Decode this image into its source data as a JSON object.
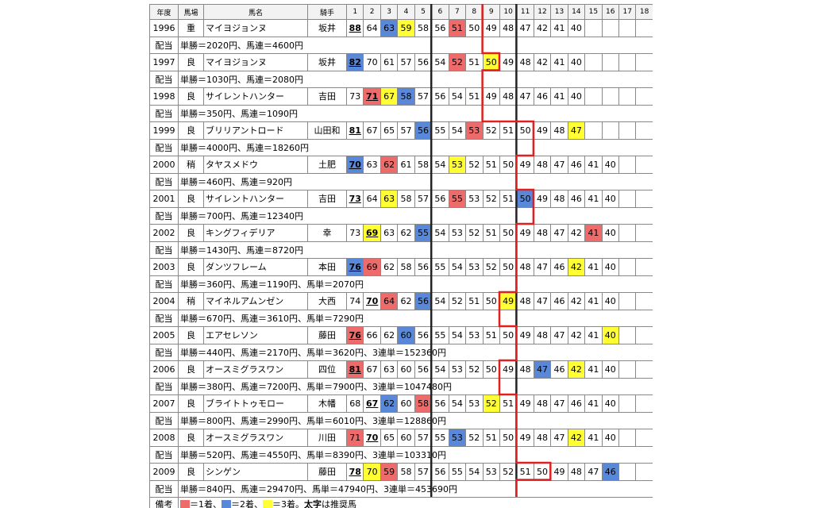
{
  "header": {
    "columns": [
      "年度",
      "馬場",
      "馬名",
      "騎手",
      "1",
      "2",
      "3",
      "4",
      "5",
      "6",
      "7",
      "8",
      "9",
      "10",
      "11",
      "12",
      "13",
      "14",
      "15",
      "16",
      "17",
      "18"
    ]
  },
  "rows": [
    {
      "year": "1996",
      "track": "重",
      "horse": "マイヨジョンヌ",
      "jockey": "坂井",
      "cells": [
        {
          "value": 88,
          "recommended": true
        },
        {
          "value": 64
        },
        {
          "value": 63,
          "color": "blue"
        },
        {
          "value": 59,
          "color": "yellow"
        },
        {
          "value": 58
        },
        {
          "value": 56
        },
        {
          "value": 51,
          "color": "red"
        },
        {
          "value": 50
        },
        {
          "value": 49
        },
        {
          "value": 48
        },
        {
          "value": 47
        },
        {
          "value": 42
        },
        {
          "value": 41
        },
        {
          "value": 40
        }
      ],
      "payout_label": "配当",
      "payout": "単勝＝2020円、馬連＝4600円"
    },
    {
      "year": "1997",
      "track": "良",
      "horse": "マイヨジョンヌ",
      "jockey": "坂井",
      "cells": [
        {
          "value": 82,
          "recommended": true,
          "color": "blue"
        },
        {
          "value": 70
        },
        {
          "value": 61
        },
        {
          "value": 57
        },
        {
          "value": 56
        },
        {
          "value": 54
        },
        {
          "value": 52,
          "color": "red"
        },
        {
          "value": 51
        },
        {
          "value": 50,
          "color": "yellow"
        },
        {
          "value": 49
        },
        {
          "value": 48
        },
        {
          "value": 42
        },
        {
          "value": 41
        },
        {
          "value": 40
        }
      ],
      "payout_label": "配当",
      "payout": "単勝＝1030円、馬連＝2080円"
    },
    {
      "year": "1998",
      "track": "良",
      "horse": "サイレントハンター",
      "jockey": "吉田",
      "cells": [
        {
          "value": 73
        },
        {
          "value": 71,
          "recommended": true,
          "color": "red"
        },
        {
          "value": 67,
          "color": "yellow"
        },
        {
          "value": 58,
          "color": "blue"
        },
        {
          "value": 57
        },
        {
          "value": 56
        },
        {
          "value": 54
        },
        {
          "value": 51
        },
        {
          "value": 49
        },
        {
          "value": 48
        },
        {
          "value": 47
        },
        {
          "value": 46
        },
        {
          "value": 41
        },
        {
          "value": 40
        }
      ],
      "payout_label": "配当",
      "payout": "単勝＝350円、馬連＝1090円"
    },
    {
      "year": "1999",
      "track": "良",
      "horse": "ブリリアントロード",
      "jockey": "山田和",
      "cells": [
        {
          "value": 81,
          "recommended": true
        },
        {
          "value": 67
        },
        {
          "value": 65
        },
        {
          "value": 57
        },
        {
          "value": 56,
          "color": "blue"
        },
        {
          "value": 55
        },
        {
          "value": 54
        },
        {
          "value": 53,
          "color": "red"
        },
        {
          "value": 52
        },
        {
          "value": 51
        },
        {
          "value": 50
        },
        {
          "value": 49
        },
        {
          "value": 48
        },
        {
          "value": 47,
          "color": "yellow"
        }
      ],
      "payout_label": "配当",
      "payout": "単勝＝4000円、馬連＝18260円"
    },
    {
      "year": "2000",
      "track": "稍",
      "horse": "タヤスメドウ",
      "jockey": "土肥",
      "cells": [
        {
          "value": 70,
          "recommended": true,
          "color": "blue"
        },
        {
          "value": 63
        },
        {
          "value": 62,
          "color": "red"
        },
        {
          "value": 61
        },
        {
          "value": 58
        },
        {
          "value": 54
        },
        {
          "value": 53,
          "color": "yellow"
        },
        {
          "value": 52
        },
        {
          "value": 51
        },
        {
          "value": 50
        },
        {
          "value": 49
        },
        {
          "value": 48
        },
        {
          "value": 47
        },
        {
          "value": 46
        },
        {
          "value": 41
        },
        {
          "value": 40
        }
      ],
      "payout_label": "配当",
      "payout": "単勝＝460円、馬連＝920円"
    },
    {
      "year": "2001",
      "track": "良",
      "horse": "サイレントハンター",
      "jockey": "吉田",
      "cells": [
        {
          "value": 73,
          "recommended": true
        },
        {
          "value": 64
        },
        {
          "value": 63,
          "color": "yellow"
        },
        {
          "value": 58
        },
        {
          "value": 57
        },
        {
          "value": 56
        },
        {
          "value": 55,
          "color": "red"
        },
        {
          "value": 53
        },
        {
          "value": 52
        },
        {
          "value": 51
        },
        {
          "value": 50,
          "color": "blue"
        },
        {
          "value": 49
        },
        {
          "value": 48
        },
        {
          "value": 46
        },
        {
          "value": 41
        },
        {
          "value": 40
        }
      ],
      "payout_label": "配当",
      "payout": "単勝＝700円、馬連＝12340円"
    },
    {
      "year": "2002",
      "track": "良",
      "horse": "キングフィデリア",
      "jockey": "幸",
      "cells": [
        {
          "value": 73
        },
        {
          "value": 69,
          "recommended": true,
          "color": "yellow"
        },
        {
          "value": 63
        },
        {
          "value": 62
        },
        {
          "value": 55,
          "color": "blue"
        },
        {
          "value": 54
        },
        {
          "value": 53
        },
        {
          "value": 52
        },
        {
          "value": 51
        },
        {
          "value": 50
        },
        {
          "value": 49
        },
        {
          "value": 48
        },
        {
          "value": 47
        },
        {
          "value": 42
        },
        {
          "value": 41,
          "color": "red"
        },
        {
          "value": 40
        }
      ],
      "payout_label": "配当",
      "payout": "単勝＝1430円、馬連＝8720円"
    },
    {
      "year": "2003",
      "track": "良",
      "horse": "ダンツフレーム",
      "jockey": "本田",
      "cells": [
        {
          "value": 76,
          "recommended": true,
          "color": "blue"
        },
        {
          "value": 69,
          "color": "red"
        },
        {
          "value": 62
        },
        {
          "value": 58
        },
        {
          "value": 56
        },
        {
          "value": 55
        },
        {
          "value": 54
        },
        {
          "value": 53
        },
        {
          "value": 52
        },
        {
          "value": 50
        },
        {
          "value": 48
        },
        {
          "value": 47
        },
        {
          "value": 46
        },
        {
          "value": 42,
          "color": "yellow"
        },
        {
          "value": 41
        },
        {
          "value": 40
        }
      ],
      "payout_label": "配当",
      "payout": "単勝＝360円、馬連＝1190円、馬単＝2070円"
    },
    {
      "year": "2004",
      "track": "稍",
      "horse": "マイネルアムンゼン",
      "jockey": "大西",
      "cells": [
        {
          "value": 74
        },
        {
          "value": 70,
          "recommended": true
        },
        {
          "value": 64,
          "color": "red"
        },
        {
          "value": 62
        },
        {
          "value": 56,
          "color": "blue"
        },
        {
          "value": 54
        },
        {
          "value": 52
        },
        {
          "value": 51
        },
        {
          "value": 50
        },
        {
          "value": 49,
          "color": "yellow"
        },
        {
          "value": 48
        },
        {
          "value": 47
        },
        {
          "value": 46
        },
        {
          "value": 42
        },
        {
          "value": 41
        },
        {
          "value": 40
        }
      ],
      "payout_label": "配当",
      "payout": "単勝＝670円、馬連＝3610円、馬単＝7290円"
    },
    {
      "year": "2005",
      "track": "良",
      "horse": "エアセレソン",
      "jockey": "藤田",
      "cells": [
        {
          "value": 76,
          "recommended": true,
          "color": "red"
        },
        {
          "value": 66
        },
        {
          "value": 62
        },
        {
          "value": 60,
          "color": "blue"
        },
        {
          "value": 56
        },
        {
          "value": 55
        },
        {
          "value": 54
        },
        {
          "value": 53
        },
        {
          "value": 51
        },
        {
          "value": 50
        },
        {
          "value": 49
        },
        {
          "value": 48
        },
        {
          "value": 47
        },
        {
          "value": 42
        },
        {
          "value": 41
        },
        {
          "value": 40,
          "color": "yellow"
        }
      ],
      "payout_label": "配当",
      "payout": "単勝＝440円、馬連＝2170円、馬単＝3620円、3連単＝152360円"
    },
    {
      "year": "2006",
      "track": "良",
      "horse": "オースミグラスワン",
      "jockey": "四位",
      "cells": [
        {
          "value": 81,
          "recommended": true,
          "color": "red"
        },
        {
          "value": 67
        },
        {
          "value": 63
        },
        {
          "value": 60
        },
        {
          "value": 56
        },
        {
          "value": 54
        },
        {
          "value": 53
        },
        {
          "value": 52
        },
        {
          "value": 50
        },
        {
          "value": 49
        },
        {
          "value": 48
        },
        {
          "value": 47,
          "color": "blue"
        },
        {
          "value": 46
        },
        {
          "value": 42,
          "color": "yellow"
        },
        {
          "value": 41
        },
        {
          "value": 40
        }
      ],
      "payout_label": "配当",
      "payout": "単勝＝380円、馬連＝7200円、馬単＝7900円、3連単＝1047480円"
    },
    {
      "year": "2007",
      "track": "良",
      "horse": "ブライトトゥモロー",
      "jockey": "木幡",
      "cells": [
        {
          "value": 68
        },
        {
          "value": 67,
          "recommended": true
        },
        {
          "value": 62,
          "color": "blue"
        },
        {
          "value": 60
        },
        {
          "value": 58,
          "color": "red"
        },
        {
          "value": 56
        },
        {
          "value": 54
        },
        {
          "value": 53
        },
        {
          "value": 52,
          "color": "yellow"
        },
        {
          "value": 51
        },
        {
          "value": 49
        },
        {
          "value": 48
        },
        {
          "value": 47
        },
        {
          "value": 46
        },
        {
          "value": 41
        },
        {
          "value": 40
        }
      ],
      "payout_label": "配当",
      "payout": "単勝＝800円、馬連＝2990円、馬単＝6010円、3連単＝128860円"
    },
    {
      "year": "2008",
      "track": "良",
      "horse": "オースミグラスワン",
      "jockey": "川田",
      "cells": [
        {
          "value": 71,
          "color": "red"
        },
        {
          "value": 70,
          "recommended": true
        },
        {
          "value": 65
        },
        {
          "value": 60
        },
        {
          "value": 57
        },
        {
          "value": 55
        },
        {
          "value": 53,
          "color": "blue"
        },
        {
          "value": 52
        },
        {
          "value": 51
        },
        {
          "value": 50
        },
        {
          "value": 49
        },
        {
          "value": 48
        },
        {
          "value": 47
        },
        {
          "value": 42,
          "color": "yellow"
        },
        {
          "value": 41
        },
        {
          "value": 40
        }
      ],
      "payout_label": "配当",
      "payout": "単勝＝520円、馬連＝4550円、馬単＝8390円、3連単＝103310円"
    },
    {
      "year": "2009",
      "track": "良",
      "horse": "シンゲン",
      "jockey": "藤田",
      "cells": [
        {
          "value": 78,
          "recommended": true
        },
        {
          "value": 70,
          "color": "yellow"
        },
        {
          "value": 59,
          "color": "red"
        },
        {
          "value": 58
        },
        {
          "value": 57
        },
        {
          "value": 56
        },
        {
          "value": 55
        },
        {
          "value": 54
        },
        {
          "value": 53
        },
        {
          "value": 52
        },
        {
          "value": 51
        },
        {
          "value": 50
        },
        {
          "value": 49
        },
        {
          "value": 48
        },
        {
          "value": 47
        },
        {
          "value": 46,
          "color": "blue"
        }
      ],
      "payout_label": "配当",
      "payout": "単勝＝840円、馬連＝29470円、馬単＝47940円、3連単＝453690円"
    }
  ],
  "note": {
    "label": "備考",
    "legend": [
      {
        "color": "red",
        "text": "＝1着、"
      },
      {
        "color": "blue",
        "text": "＝2着、"
      },
      {
        "color": "yellow",
        "text": "＝3着。"
      }
    ],
    "bold_text": "太字",
    "text": "は推奨馬"
  }
}
